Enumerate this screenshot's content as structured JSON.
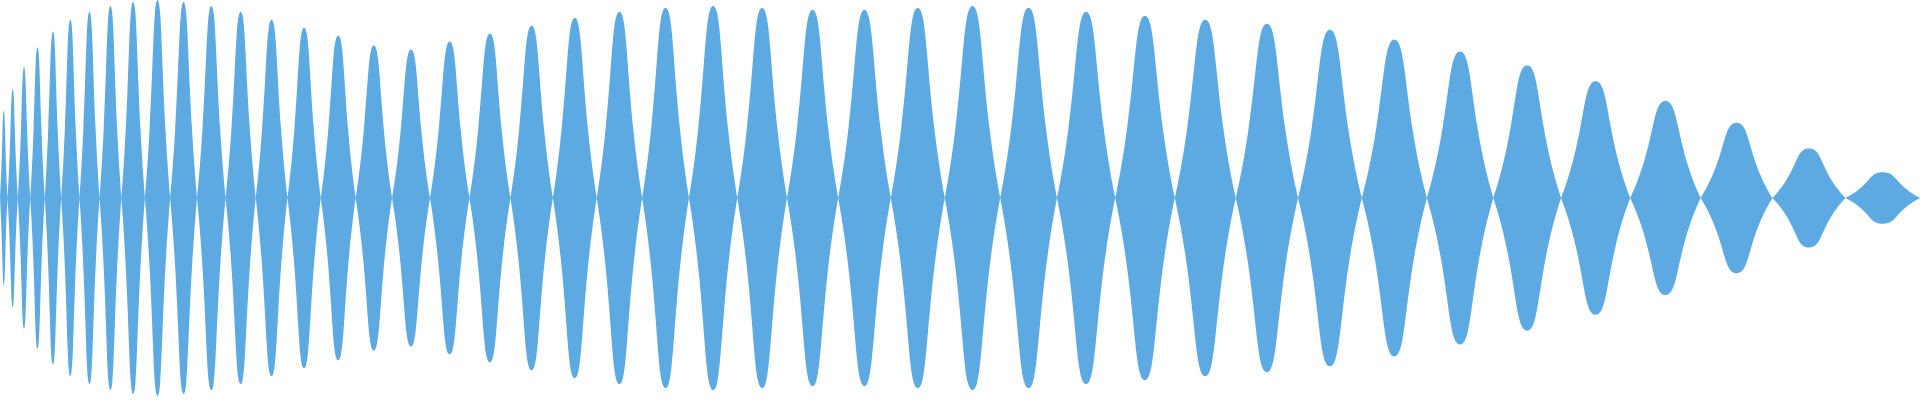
{
  "waveform": {
    "color": "#5DAAE2",
    "background": "#FFFFFF",
    "lobes": [
      {
        "peak": 0.44
      },
      {
        "peak": 0.55
      },
      {
        "peak": 0.66
      },
      {
        "peak": 0.76
      },
      {
        "peak": 0.84
      },
      {
        "peak": 0.9
      },
      {
        "peak": 0.94
      },
      {
        "peak": 0.97
      },
      {
        "peak": 0.99
      },
      {
        "peak": 1.0
      },
      {
        "peak": 0.99
      },
      {
        "peak": 0.97
      },
      {
        "peak": 0.94
      },
      {
        "peak": 0.9
      },
      {
        "peak": 0.86
      },
      {
        "peak": 0.82
      },
      {
        "peak": 0.77
      },
      {
        "peak": 0.75
      },
      {
        "peak": 0.79
      },
      {
        "peak": 0.83
      },
      {
        "peak": 0.87
      },
      {
        "peak": 0.91
      },
      {
        "peak": 0.94
      },
      {
        "peak": 0.96
      },
      {
        "peak": 0.97
      },
      {
        "peak": 0.96
      },
      {
        "peak": 0.95
      },
      {
        "peak": 0.95
      },
      {
        "peak": 0.96
      },
      {
        "peak": 0.97
      },
      {
        "peak": 0.96
      },
      {
        "peak": 0.94
      },
      {
        "peak": 0.92
      },
      {
        "peak": 0.9
      },
      {
        "peak": 0.88
      },
      {
        "peak": 0.85
      },
      {
        "peak": 0.8
      },
      {
        "peak": 0.74
      },
      {
        "peak": 0.67
      },
      {
        "peak": 0.59
      },
      {
        "peak": 0.49
      },
      {
        "peak": 0.38
      },
      {
        "peak": 0.25
      },
      {
        "peak": 0.13
      }
    ]
  }
}
